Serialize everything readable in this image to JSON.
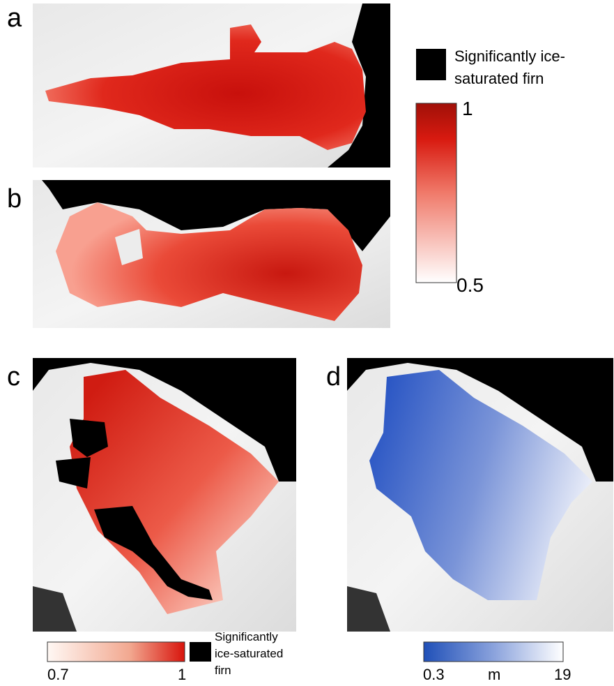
{
  "panels": [
    {
      "label": "a"
    },
    {
      "label": "b"
    },
    {
      "label": "c"
    },
    {
      "label": "d"
    }
  ],
  "legend_top": {
    "swatch_text": [
      "Significantly ice-",
      "saturated firn"
    ],
    "colorbar_max": "1",
    "colorbar_min": "0.5"
  },
  "legend_c": {
    "min": "0.7",
    "max": "1",
    "swatch_text": [
      "Significantly",
      "ice-saturated",
      "firn"
    ]
  },
  "legend_d": {
    "min": "0.3",
    "unit": "m",
    "max": "19"
  }
}
